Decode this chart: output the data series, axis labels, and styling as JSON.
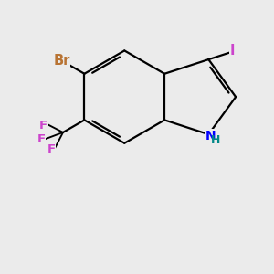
{
  "bg_color": "#ebebeb",
  "bond_color": "#000000",
  "bond_width": 1.6,
  "atom_labels": {
    "Br": {
      "color": "#b87333",
      "fontsize": 10.5,
      "fontweight": "bold"
    },
    "I": {
      "color": "#cc44cc",
      "fontsize": 10.5,
      "fontweight": "bold"
    },
    "N": {
      "color": "#0000ff",
      "fontsize": 10,
      "fontweight": "bold"
    },
    "H": {
      "color": "#008888",
      "fontsize": 9,
      "fontweight": "bold"
    },
    "F": {
      "color": "#cc44cc",
      "fontsize": 9.5,
      "fontweight": "bold"
    }
  },
  "figsize": [
    3.0,
    3.0
  ],
  "dpi": 100,
  "xlim": [
    -2.2,
    2.2
  ],
  "ylim": [
    -2.4,
    2.0
  ]
}
